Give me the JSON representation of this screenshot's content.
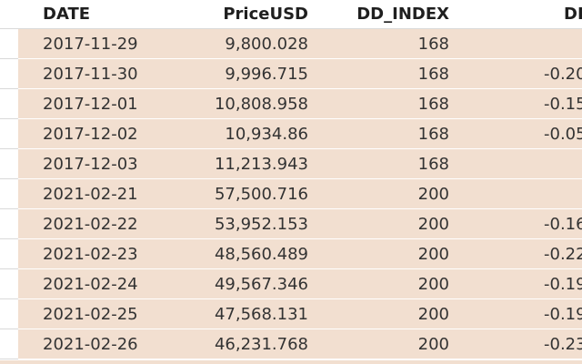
{
  "table": {
    "columns": [
      "DATE",
      "PriceUSD",
      "DD_INDEX",
      "DI"
    ],
    "rows": [
      {
        "date": "2017-11-29",
        "price": "9,800.028",
        "dd_index": "168",
        "extra": ""
      },
      {
        "date": "2017-11-30",
        "price": "9,996.715",
        "dd_index": "168",
        "extra": "-0.20"
      },
      {
        "date": "2017-12-01",
        "price": "10,808.958",
        "dd_index": "168",
        "extra": "-0.15"
      },
      {
        "date": "2017-12-02",
        "price": "10,934.86",
        "dd_index": "168",
        "extra": "-0.05"
      },
      {
        "date": "2017-12-03",
        "price": "11,213.943",
        "dd_index": "168",
        "extra": ""
      },
      {
        "date": "2021-02-21",
        "price": "57,500.716",
        "dd_index": "200",
        "extra": ""
      },
      {
        "date": "2021-02-22",
        "price": "53,952.153",
        "dd_index": "200",
        "extra": "-0.16"
      },
      {
        "date": "2021-02-23",
        "price": "48,560.489",
        "dd_index": "200",
        "extra": "-0.22"
      },
      {
        "date": "2021-02-24",
        "price": "49,567.346",
        "dd_index": "200",
        "extra": "-0.19"
      },
      {
        "date": "2021-02-25",
        "price": "47,568.131",
        "dd_index": "200",
        "extra": "-0.19"
      },
      {
        "date": "2021-02-26",
        "price": "46,231.768",
        "dd_index": "200",
        "extra": "-0.23"
      }
    ]
  },
  "colors": {
    "row_background": "#f2dfd0",
    "header_background": "#ffffff",
    "grid_line": "#d9d9d9"
  }
}
